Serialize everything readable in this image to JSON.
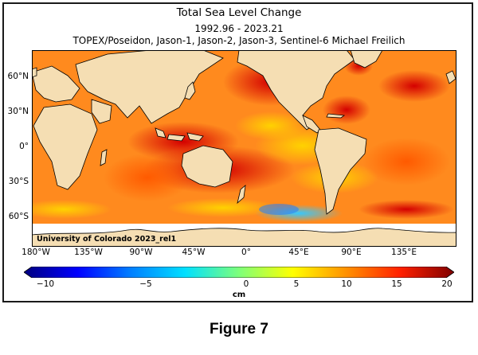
{
  "title": "Total Sea Level Change",
  "period": "1992.96 - 2023.21",
  "missions": "TOPEX/Poseidon, Jason-1, Jason-2, Jason-3, Sentinel-6 Michael Freilich",
  "credit": "University of Colorado 2023_rel1",
  "lat_ticks": [
    "60°N",
    "30°N",
    "0°",
    "30°S",
    "60°S"
  ],
  "lon_ticks": [
    "180°W",
    "135°W",
    "90°W",
    "45°W",
    "0°",
    "45°E",
    "90°E",
    "135°E"
  ],
  "colorbar": {
    "ticks": [
      "−10",
      "−5",
      "0",
      "5",
      "10",
      "15",
      "20"
    ],
    "unit": "cm",
    "colors": [
      "#00007f",
      "#0000ff",
      "#0080ff",
      "#00e0ff",
      "#7dff7a",
      "#ffff00",
      "#ff9000",
      "#ff2000",
      "#7f0000"
    ]
  },
  "colors": {
    "land": "#f5deb3",
    "ocean_base": "#ff8a1e",
    "ice": "#ffffff"
  },
  "caption": "Figure 7"
}
